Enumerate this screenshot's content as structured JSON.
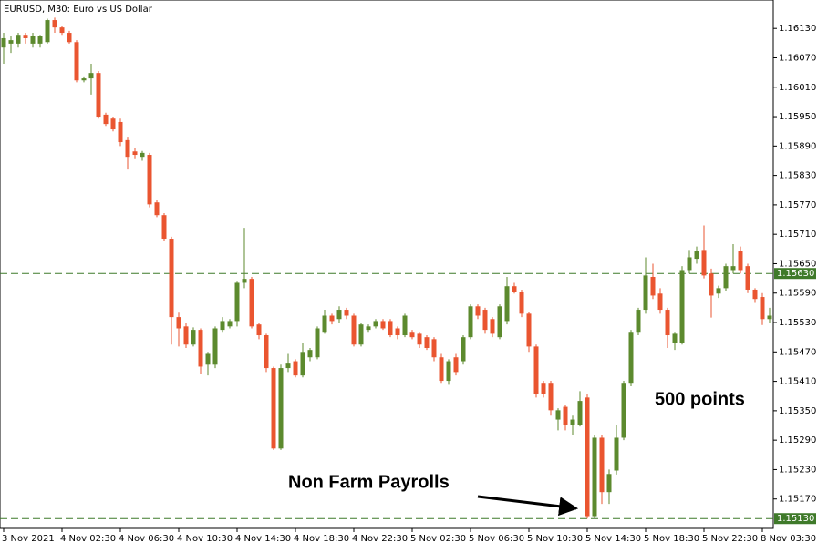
{
  "chart_data": {
    "type": "candlestick",
    "title": "EURUSD, M30:  Euro vs US Dollar",
    "categories": [
      "3 Nov 2021",
      null,
      null,
      null,
      null,
      null,
      null,
      null,
      "4 Nov 02:30",
      null,
      null,
      null,
      null,
      null,
      null,
      null,
      "4 Nov 06:30",
      null,
      null,
      null,
      null,
      null,
      null,
      null,
      "4 Nov 10:30",
      null,
      null,
      null,
      null,
      null,
      null,
      null,
      "4 Nov 14:30",
      null,
      null,
      null,
      null,
      null,
      null,
      null,
      "4 Nov 18:30",
      null,
      null,
      null,
      null,
      null,
      null,
      null,
      "4 Nov 22:30",
      null,
      null,
      null,
      null,
      null,
      null,
      null,
      "5 Nov 02:30",
      null,
      null,
      null,
      null,
      null,
      null,
      null,
      "5 Nov 06:30",
      null,
      null,
      null,
      null,
      null,
      null,
      null,
      "5 Nov 10:30",
      null,
      null,
      null,
      null,
      null,
      null,
      null,
      "5 Nov 14:30",
      null,
      null,
      null,
      null,
      null,
      null,
      null,
      "5 Nov 18:30",
      null,
      null,
      null,
      null,
      null,
      null,
      null,
      "5 Nov 22:30",
      null,
      null,
      null,
      null,
      null,
      null,
      null,
      "8 Nov 03:30",
      null
    ],
    "open": [
      1.16091,
      1.16099,
      1.16099,
      1.16117,
      1.16099,
      1.16099,
      1.16102,
      1.16147,
      1.16132,
      1.16121,
      1.16102,
      1.16024,
      1.16028,
      1.16039,
      1.15954,
      1.15946,
      1.15939,
      1.15902,
      1.15879,
      1.15868,
      1.15872,
      1.15775,
      1.15749,
      1.15701,
      1.15541,
      1.15522,
      1.15485,
      1.15515,
      1.15444,
      1.15444,
      1.15515,
      1.15522,
      1.15533,
      1.15611,
      1.15619,
      1.15526,
      1.15504,
      1.15437,
      1.15273,
      1.15437,
      1.15451,
      1.15422,
      1.15459,
      1.15459,
      1.15511,
      1.15544,
      1.15537,
      1.15556,
      1.15544,
      1.15485,
      1.15515,
      1.15522,
      1.15533,
      1.15533,
      1.15518,
      1.15504,
      1.15511,
      1.15507,
      1.155,
      1.15496,
      1.15459,
      1.15411,
      1.15459,
      1.15451,
      1.155,
      1.15563,
      1.15556,
      1.15537,
      1.155,
      1.15533,
      1.15604,
      1.15593,
      1.15548,
      1.15481,
      1.15407,
      1.15407,
      1.15332,
      1.15358,
      1.15321,
      1.15321,
      1.15377,
      1.15135,
      1.15295,
      1.15184,
      1.15228,
      1.15295,
      1.15407,
      1.15511,
      1.15556,
      1.15623,
      1.15589,
      1.15556,
      1.15489,
      1.15489,
      1.15637,
      1.1566,
      1.15678,
      1.1563,
      1.15589,
      1.156,
      1.15637,
      1.15675,
      1.15645,
      1.15597,
      1.15582,
      1.15537
    ],
    "high": [
      1.16121,
      1.16114,
      1.16121,
      1.16121,
      1.16121,
      1.16117,
      1.1615,
      1.16152,
      1.16136,
      1.16125,
      1.16106,
      1.16032,
      1.16058,
      1.16043,
      1.15958,
      1.1595,
      1.15946,
      1.15909,
      1.15887,
      1.1588,
      1.15876,
      1.1578,
      1.15753,
      1.15705,
      1.1555,
      1.1553,
      1.1552,
      1.15518,
      1.1547,
      1.15522,
      1.15541,
      1.15537,
      1.15615,
      1.15723,
      1.15623,
      1.1553,
      1.15507,
      1.1544,
      1.15444,
      1.15466,
      1.15455,
      1.15489,
      1.15478,
      1.15522,
      1.15556,
      1.15548,
      1.15563,
      1.1556,
      1.15548,
      1.1553,
      1.15526,
      1.15537,
      1.15537,
      1.15537,
      1.15522,
      1.15548,
      1.15515,
      1.15511,
      1.15504,
      1.155,
      1.15466,
      1.15455,
      1.15466,
      1.15504,
      1.15567,
      1.15567,
      1.1556,
      1.15541,
      1.15567,
      1.15623,
      1.15611,
      1.15597,
      1.15552,
      1.15485,
      1.15411,
      1.15411,
      1.15355,
      1.15362,
      1.1534,
      1.1539,
      1.15385,
      1.153,
      1.153,
      1.1523,
      1.1532,
      1.15411,
      1.15515,
      1.1556,
      1.15663,
      1.1565,
      1.156,
      1.1556,
      1.15511,
      1.15645,
      1.15678,
      1.15685,
      1.15728,
      1.1564,
      1.15605,
      1.1565,
      1.1569,
      1.15685,
      1.1565,
      1.156,
      1.1559,
      1.1556
    ],
    "low": [
      1.16058,
      1.1608,
      1.16091,
      1.16099,
      1.16091,
      1.16091,
      1.16099,
      1.16121,
      1.16117,
      1.16099,
      1.1602,
      1.1602,
      1.15995,
      1.15946,
      1.15931,
      1.1592,
      1.1589,
      1.15842,
      1.15865,
      1.1586,
      1.15765,
      1.15745,
      1.15697,
      1.15485,
      1.15481,
      1.15478,
      1.15481,
      1.15425,
      1.15422,
      1.15437,
      1.15511,
      1.15518,
      1.15522,
      1.156,
      1.15518,
      1.15496,
      1.15429,
      1.1527,
      1.1527,
      1.15429,
      1.15418,
      1.15418,
      1.15451,
      1.15455,
      1.15507,
      1.15526,
      1.1553,
      1.15537,
      1.15481,
      1.15481,
      1.15511,
      1.15518,
      1.15515,
      1.155,
      1.15496,
      1.155,
      1.15496,
      1.15478,
      1.15474,
      1.15451,
      1.15407,
      1.15403,
      1.15422,
      1.15444,
      1.15496,
      1.15537,
      1.15507,
      1.155,
      1.15496,
      1.15526,
      1.15589,
      1.15541,
      1.1547,
      1.15377,
      1.15377,
      1.1534,
      1.1531,
      1.1531,
      1.153,
      1.15318,
      1.1513,
      1.1513,
      1.1516,
      1.1516,
      1.1522,
      1.1529,
      1.154,
      1.15504,
      1.15548,
      1.15578,
      1.15548,
      1.15478,
      1.15474,
      1.15485,
      1.1563,
      1.1565,
      1.1562,
      1.1554,
      1.1558,
      1.15595,
      1.1563,
      1.1563,
      1.1559,
      1.1557,
      1.15525,
      1.1553
    ],
    "close": [
      1.1611,
      1.16106,
      1.16117,
      1.1611,
      1.16114,
      1.16114,
      1.16147,
      1.16132,
      1.16121,
      1.16102,
      1.16024,
      1.16028,
      1.16039,
      1.1595,
      1.15935,
      1.15924,
      1.15898,
      1.15868,
      1.15872,
      1.15876,
      1.15771,
      1.15749,
      1.15701,
      1.15541,
      1.15518,
      1.15485,
      1.15515,
      1.1544,
      1.15466,
      1.15518,
      1.15533,
      1.15533,
      1.15611,
      1.15619,
      1.15522,
      1.15504,
      1.15437,
      1.15273,
      1.15437,
      1.15448,
      1.15422,
      1.1547,
      1.15474,
      1.15518,
      1.15544,
      1.15533,
      1.15556,
      1.15544,
      1.15485,
      1.15526,
      1.15522,
      1.15533,
      1.15518,
      1.15504,
      1.15504,
      1.15544,
      1.155,
      1.15485,
      1.15478,
      1.15459,
      1.15411,
      1.15451,
      1.15429,
      1.155,
      1.15563,
      1.15544,
      1.15515,
      1.15507,
      1.15563,
      1.15604,
      1.15593,
      1.15548,
      1.15481,
      1.15384,
      1.15384,
      1.15351,
      1.15351,
      1.15321,
      1.15332,
      1.1537,
      1.15135,
      1.15295,
      1.15184,
      1.15221,
      1.15295,
      1.15407,
      1.15511,
      1.15556,
      1.15626,
      1.15585,
      1.15556,
      1.15504,
      1.15507,
      1.15637,
      1.15663,
      1.15675,
      1.15626,
      1.15585,
      1.156,
      1.15645,
      1.15645,
      1.15637,
      1.15597,
      1.15578,
      1.15537,
      1.15544
    ],
    "up_color": "#5c8a2e",
    "down_color": "#ea5530",
    "ylim": [
      1.1511,
      1.16188
    ],
    "yticks": [
      {
        "value": 1.1613,
        "label": "1.16130"
      },
      {
        "value": 1.1607,
        "label": "1.16070"
      },
      {
        "value": 1.1601,
        "label": "1.16010"
      },
      {
        "value": 1.1595,
        "label": "1.15950"
      },
      {
        "value": 1.1589,
        "label": "1.15890"
      },
      {
        "value": 1.1583,
        "label": "1.15830"
      },
      {
        "value": 1.1577,
        "label": "1.15770"
      },
      {
        "value": 1.1571,
        "label": "1.15710"
      },
      {
        "value": 1.1565,
        "label": "1.15650"
      },
      {
        "value": 1.1559,
        "label": "1.15590"
      },
      {
        "value": 1.1553,
        "label": "1.15530"
      },
      {
        "value": 1.1547,
        "label": "1.15470"
      },
      {
        "value": 1.1541,
        "label": "1.15410"
      },
      {
        "value": 1.1535,
        "label": "1.15350"
      },
      {
        "value": 1.1529,
        "label": "1.15290"
      },
      {
        "value": 1.1523,
        "label": "1.15230"
      },
      {
        "value": 1.1517,
        "label": "1.15170"
      }
    ],
    "levels": [
      {
        "value": 1.1563,
        "label": "1.15630"
      },
      {
        "value": 1.1513,
        "label": "1.15130"
      }
    ],
    "level_color": "#3f7a2a",
    "annotations": [
      "500 points",
      "Non Farm Payrolls"
    ]
  }
}
